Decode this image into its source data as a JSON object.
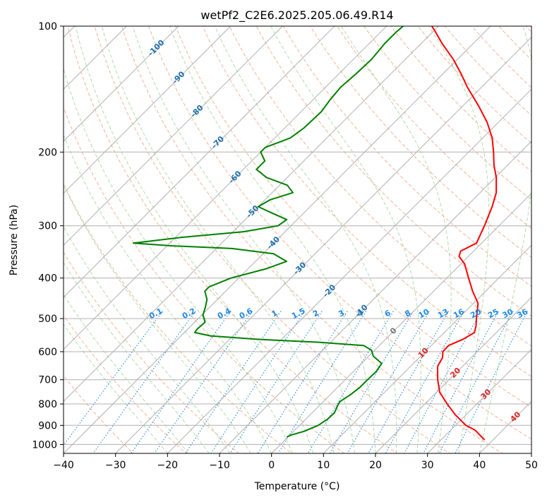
{
  "chart_data": {
    "type": "line",
    "title": "wetPf2_C2E6.2025.205.06.49.R14",
    "xlabel": "Temperature (°C)",
    "ylabel": "Pressure (hPa)",
    "xlim": [
      -40,
      50
    ],
    "ylim": [
      1050,
      100
    ],
    "y_scale": "log",
    "skew": true,
    "grid": true,
    "x_ticks": [
      -40,
      -30,
      -20,
      -10,
      0,
      10,
      20,
      30,
      40,
      50
    ],
    "y_ticks": [
      100,
      200,
      300,
      400,
      500,
      600,
      700,
      800,
      900,
      1000
    ],
    "colors": {
      "temperature": "#ff0000",
      "dewpoint": "#008000",
      "isotherm": "#b0b0b0",
      "dry_adiabat": "#f4a582",
      "moist_adiabat": "#a6d8a0",
      "mixing_ratio": "#1e88e5",
      "mixing_label": "#1e88e5",
      "iso_label_cold": "#1f6fa8",
      "iso_label_zero": "#777777",
      "iso_label_warm": "#d62728",
      "edge_curve": "#e8c9a8"
    },
    "isotherm_labels": [
      {
        "t": -100,
        "p": 113
      },
      {
        "t": -90,
        "p": 133
      },
      {
        "t": -80,
        "p": 160
      },
      {
        "t": -70,
        "p": 190
      },
      {
        "t": -60,
        "p": 230
      },
      {
        "t": -50,
        "p": 278
      },
      {
        "t": -40,
        "p": 330
      },
      {
        "t": -30,
        "p": 380
      },
      {
        "t": -20,
        "p": 430
      },
      {
        "t": -10,
        "p": 480
      },
      {
        "t": 0,
        "p": 536
      },
      {
        "t": 10,
        "p": 605
      },
      {
        "t": 20,
        "p": 675
      },
      {
        "t": 30,
        "p": 760
      },
      {
        "t": 40,
        "p": 860
      }
    ],
    "mixing_ratio_labels": [
      "0.1",
      "0.2",
      "0.4",
      "0.6",
      "1",
      "1.5",
      "2",
      "3",
      "4",
      "6",
      "8",
      "10",
      "13",
      "16",
      "20",
      "25",
      "30",
      "36"
    ],
    "series": [
      {
        "name": "temperature",
        "points": [
          [
            975,
            38.4
          ],
          [
            950,
            36.6
          ],
          [
            925,
            34.8
          ],
          [
            900,
            32.0
          ],
          [
            850,
            28.0
          ],
          [
            800,
            24.3
          ],
          [
            750,
            20.6
          ],
          [
            700,
            17.8
          ],
          [
            650,
            15.2
          ],
          [
            620,
            14.5
          ],
          [
            600,
            13.4
          ],
          [
            580,
            13.3
          ],
          [
            560,
            14.9
          ],
          [
            540,
            15.8
          ],
          [
            520,
            14.8
          ],
          [
            500,
            13.5
          ],
          [
            460,
            10.9
          ],
          [
            430,
            7.5
          ],
          [
            400,
            4.2
          ],
          [
            370,
            0.7
          ],
          [
            355,
            -1.8
          ],
          [
            345,
            -2.5
          ],
          [
            330,
            -1.0
          ],
          [
            300,
            -2.8
          ],
          [
            270,
            -5.0
          ],
          [
            250,
            -6.9
          ],
          [
            230,
            -9.8
          ],
          [
            215,
            -12.6
          ],
          [
            200,
            -15.2
          ],
          [
            185,
            -18.2
          ],
          [
            170,
            -22.1
          ],
          [
            155,
            -27.0
          ],
          [
            140,
            -32.7
          ],
          [
            130,
            -36.5
          ],
          [
            120,
            -40.8
          ],
          [
            110,
            -46.0
          ],
          [
            103,
            -49.6
          ],
          [
            100,
            -51.3
          ]
        ]
      },
      {
        "name": "dewpoint",
        "points": [
          [
            960,
            -0.2
          ],
          [
            950,
            0.2
          ],
          [
            930,
            2.0
          ],
          [
            900,
            3.6
          ],
          [
            870,
            4.2
          ],
          [
            840,
            4.3
          ],
          [
            810,
            3.6
          ],
          [
            790,
            3.2
          ],
          [
            760,
            3.9
          ],
          [
            730,
            4.3
          ],
          [
            700,
            4.3
          ],
          [
            670,
            4.4
          ],
          [
            640,
            3.9
          ],
          [
            615,
            0.9
          ],
          [
            595,
            -0.6
          ],
          [
            580,
            -3.0
          ],
          [
            570,
            -12.0
          ],
          [
            560,
            -25.0
          ],
          [
            550,
            -34.3
          ],
          [
            540,
            -38.0
          ],
          [
            530,
            -38.2
          ],
          [
            510,
            -38.0
          ],
          [
            490,
            -39.8
          ],
          [
            470,
            -40.8
          ],
          [
            450,
            -42.0
          ],
          [
            430,
            -44.0
          ],
          [
            420,
            -44.0
          ],
          [
            400,
            -41.5
          ],
          [
            380,
            -36.5
          ],
          [
            365,
            -34.0
          ],
          [
            350,
            -38.0
          ],
          [
            340,
            -47.0
          ],
          [
            335,
            -59.0
          ],
          [
            330,
            -67.0
          ],
          [
            320,
            -59.0
          ],
          [
            310,
            -48.0
          ],
          [
            300,
            -42.5
          ],
          [
            290,
            -42.0
          ],
          [
            280,
            -46.0
          ],
          [
            270,
            -50.0
          ],
          [
            260,
            -49.0
          ],
          [
            250,
            -46.0
          ],
          [
            240,
            -48.5
          ],
          [
            230,
            -54.0
          ],
          [
            220,
            -57.5
          ],
          [
            210,
            -57.5
          ],
          [
            200,
            -60.0
          ],
          [
            195,
            -60.0
          ],
          [
            185,
            -57.0
          ],
          [
            175,
            -56.3
          ],
          [
            160,
            -56.1
          ],
          [
            150,
            -56.7
          ],
          [
            140,
            -57.1
          ],
          [
            130,
            -56.7
          ],
          [
            120,
            -56.5
          ],
          [
            110,
            -57.0
          ],
          [
            103,
            -57.0
          ],
          [
            100,
            -56.8
          ]
        ]
      }
    ]
  }
}
